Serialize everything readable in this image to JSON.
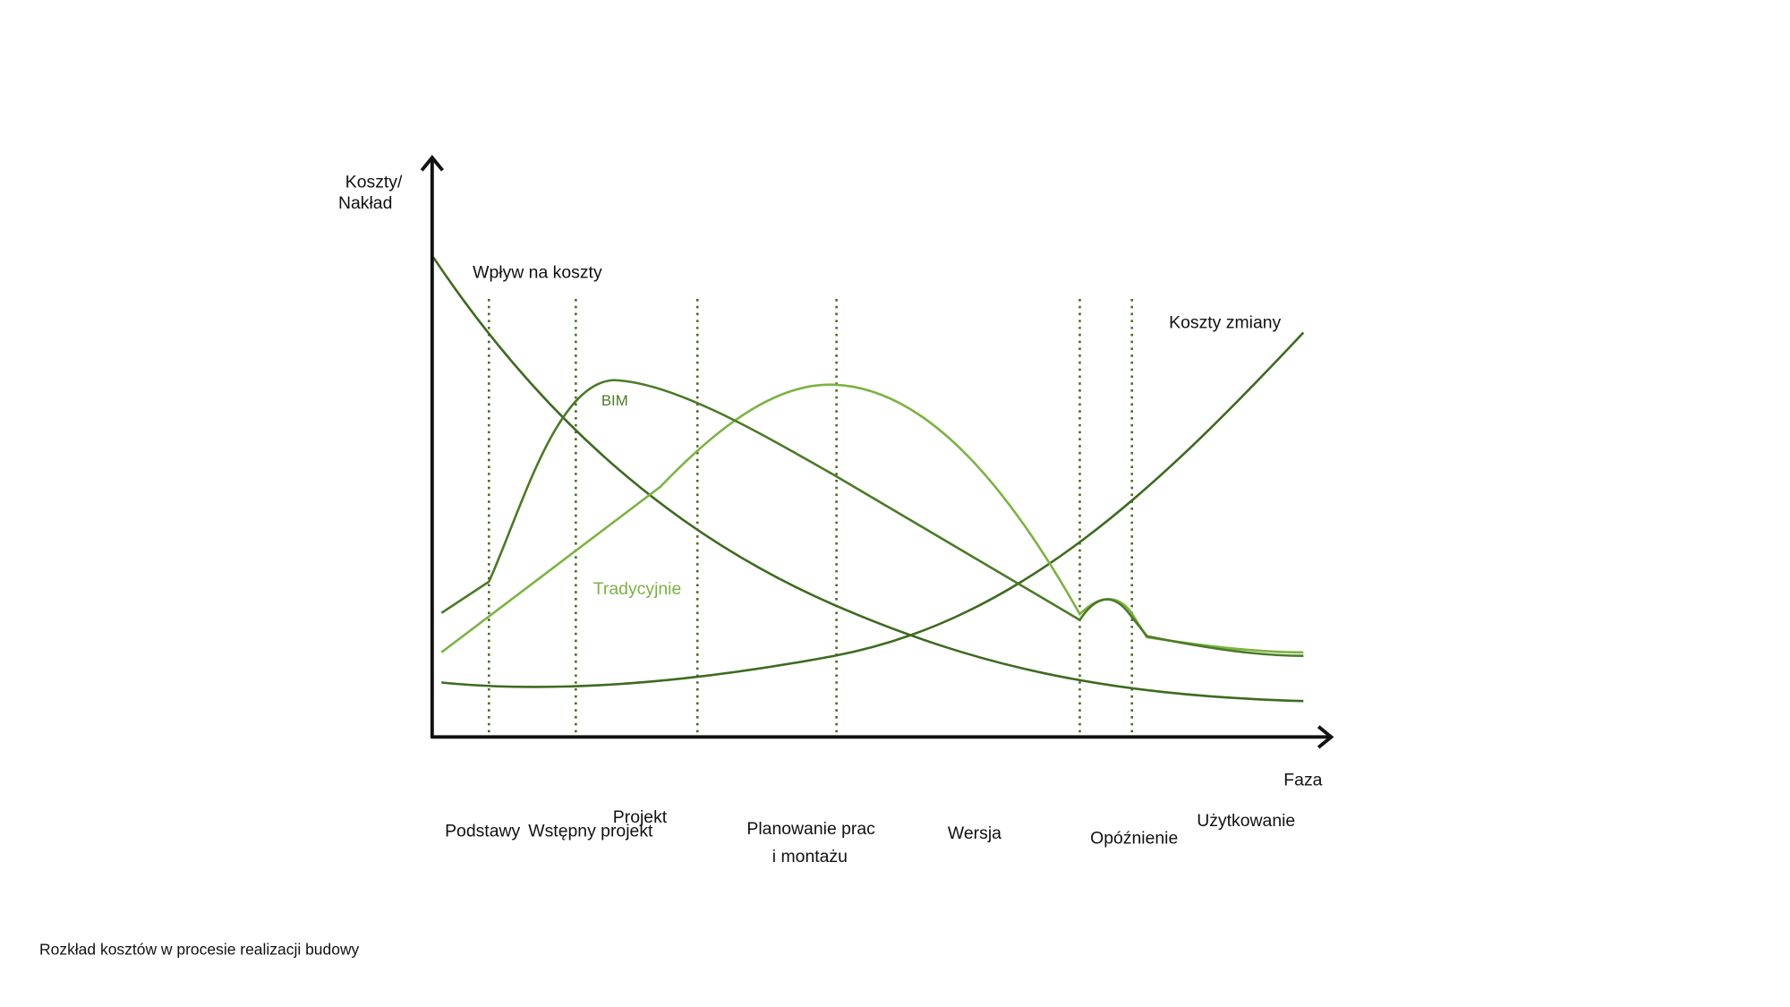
{
  "y_axis_label": [
    "Koszty/",
    "Nakład"
  ],
  "x_axis_label": "Faza",
  "curves": {
    "influence": "Wpływ na koszty",
    "change_cost": "Koszty zmiany",
    "bim": "BIM",
    "traditional": "Tradycyjnie"
  },
  "phases": [
    [
      "Podstawy"
    ],
    [
      "Wstępny projekt"
    ],
    [
      "Projekt"
    ],
    [
      "Planowanie prac",
      "i montażu"
    ],
    [
      "Wersja"
    ],
    [
      "Opóźnienie"
    ],
    [
      "Użytkowanie"
    ]
  ],
  "caption": "Rozkład kosztów w procesie realizacji budowy"
}
